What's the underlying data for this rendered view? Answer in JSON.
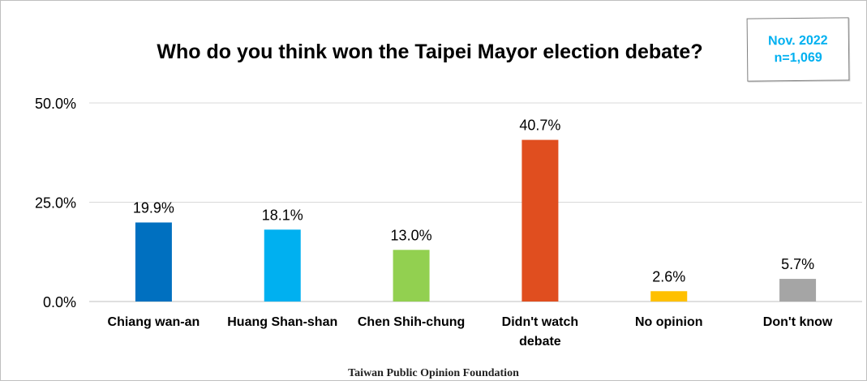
{
  "header": {
    "title": "Who do you think won the Taipei Mayor election debate?",
    "date_line1": "Nov. 2022",
    "date_line2": "n=1,069"
  },
  "footer": {
    "source": "Taiwan Public Opinion Foundation"
  },
  "chart_data": {
    "type": "bar",
    "title": "Who do you think won the Taipei Mayor election debate?",
    "xlabel": "",
    "ylabel": "",
    "ylim": [
      0,
      50
    ],
    "yticks": [
      "0.0%",
      "25.0%",
      "50.0%"
    ],
    "ytick_values": [
      0,
      25,
      50
    ],
    "grid": true,
    "legend": "none",
    "categories": [
      [
        "Chiang wan-an"
      ],
      [
        "Huang Shan-shan"
      ],
      [
        "Chen Shih-chung"
      ],
      [
        "Didn't watch",
        "debate"
      ],
      [
        "No opinion"
      ],
      [
        "Don't know"
      ]
    ],
    "values": [
      19.9,
      18.1,
      13.0,
      40.7,
      2.6,
      5.7
    ],
    "value_labels": [
      "19.9%",
      "18.1%",
      "13.0%",
      "40.7%",
      "2.6%",
      "5.7%"
    ],
    "colors": [
      "#0070c0",
      "#00b0f0",
      "#92d050",
      "#e04e1f",
      "#ffc000",
      "#a5a5a5"
    ]
  }
}
